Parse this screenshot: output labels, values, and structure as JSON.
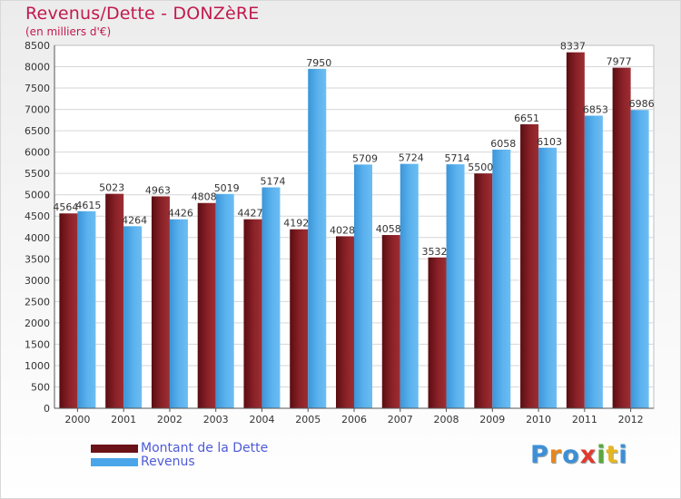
{
  "header": {
    "title": "Revenus/Dette - DONZèRE",
    "subtitle": "(en milliers d'€)"
  },
  "chart_data": {
    "type": "bar",
    "title": "Revenus/Dette - DONZèRE",
    "subtitle": "(en milliers d'€)",
    "xlabel": "",
    "ylabel": "",
    "ylim": [
      0,
      8500
    ],
    "ytick_step": 500,
    "grid": true,
    "legend_position": "bottom-left",
    "categories": [
      "2000",
      "2001",
      "2002",
      "2003",
      "2004",
      "2005",
      "2006",
      "2007",
      "2008",
      "2009",
      "2010",
      "2011",
      "2012"
    ],
    "series": [
      {
        "name": "Montant de la Dette",
        "color": "#7b1a1f",
        "values": [
          4564,
          5023,
          4963,
          4808,
          4427,
          4192,
          4028,
          4058,
          3532,
          5500,
          6651,
          8337,
          7977
        ]
      },
      {
        "name": "Revenus",
        "color": "#4aa6e8",
        "values": [
          4615,
          4264,
          4426,
          5019,
          5174,
          7950,
          5709,
          5724,
          5714,
          6058,
          6103,
          6853,
          6986
        ]
      }
    ]
  },
  "legend": {
    "items": [
      {
        "label": "Montant de la Dette",
        "color": "#7b1a1f"
      },
      {
        "label": "Revenus",
        "color": "#4aa6e8"
      }
    ]
  },
  "logo": {
    "letters": [
      "P",
      "r",
      "o",
      "x",
      "i",
      "t",
      "i"
    ],
    "colors": [
      "#3d8fd6",
      "#e8861f",
      "#3d8fd6",
      "#e03a2f",
      "#5aa83a",
      "#e8b51f",
      "#3d8fd6"
    ]
  }
}
